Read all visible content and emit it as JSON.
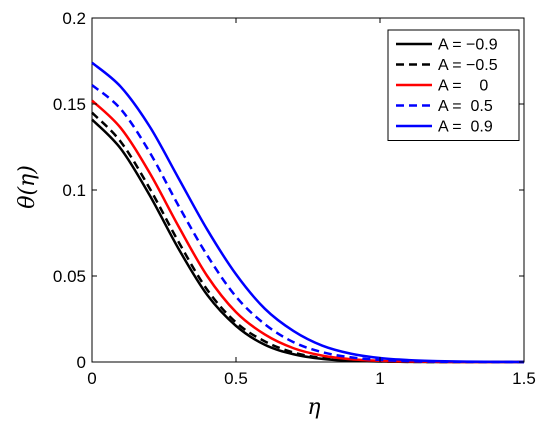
{
  "chart_data": {
    "type": "line",
    "xlabel": "η",
    "ylabel": "θ(η)",
    "xlim": [
      0,
      1.5
    ],
    "ylim": [
      0,
      0.2
    ],
    "x_ticks": [
      0,
      0.5,
      1,
      1.5
    ],
    "x_tick_labels": [
      "0",
      "0.5",
      "1",
      "1.5"
    ],
    "y_ticks": [
      0,
      0.05,
      0.1,
      0.15,
      0.2
    ],
    "y_tick_labels": [
      "0",
      "0.05",
      "0.1",
      "0.15",
      "0.2"
    ],
    "grid": false,
    "legend_position": "top-right",
    "x": [
      0,
      0.1,
      0.2,
      0.3,
      0.4,
      0.5,
      0.6,
      0.7,
      0.8,
      0.9,
      1.0,
      1.1,
      1.2,
      1.3,
      1.4,
      1.5
    ],
    "series": [
      {
        "name": "A = −0.9",
        "color": "#000000",
        "dash": "solid",
        "values": [
          0.141,
          0.124,
          0.097,
          0.066,
          0.039,
          0.021,
          0.01,
          0.0045,
          0.0018,
          0.0007,
          0.0003,
          0.0001,
          0,
          0,
          0,
          0
        ]
      },
      {
        "name": "A = −0.5",
        "color": "#000000",
        "dash": "dashed",
        "values": [
          0.145,
          0.128,
          0.101,
          0.07,
          0.042,
          0.023,
          0.012,
          0.0055,
          0.0023,
          0.0009,
          0.0004,
          0.0001,
          0,
          0,
          0,
          0
        ]
      },
      {
        "name": "A =    0",
        "color": "#ff0000",
        "dash": "solid",
        "values": [
          0.152,
          0.136,
          0.11,
          0.079,
          0.05,
          0.029,
          0.016,
          0.008,
          0.0037,
          0.0016,
          0.0007,
          0.0003,
          0.0001,
          0,
          0,
          0
        ]
      },
      {
        "name": "A =  0.5",
        "color": "#0000ff",
        "dash": "dashed",
        "values": [
          0.161,
          0.147,
          0.122,
          0.091,
          0.062,
          0.038,
          0.022,
          0.0115,
          0.0057,
          0.0027,
          0.0012,
          0.0005,
          0.0002,
          0.0001,
          0,
          0
        ]
      },
      {
        "name": "A =  0.9",
        "color": "#0000ff",
        "dash": "solid",
        "values": [
          0.174,
          0.16,
          0.137,
          0.107,
          0.077,
          0.051,
          0.031,
          0.018,
          0.0095,
          0.0048,
          0.0023,
          0.0011,
          0.0005,
          0.0002,
          0.0001,
          0
        ]
      }
    ]
  }
}
